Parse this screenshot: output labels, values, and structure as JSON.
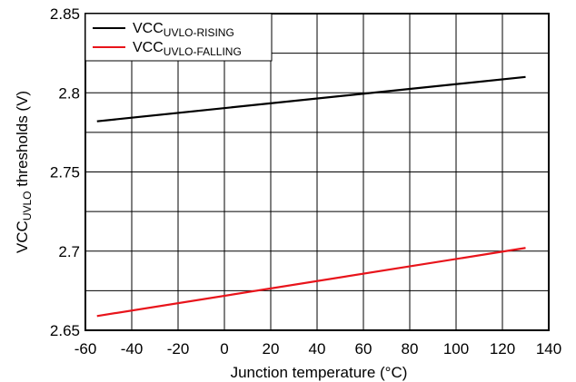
{
  "chart_data": {
    "type": "line",
    "title": "",
    "xlabel": "Junction temperature (°C)",
    "ylabel": {
      "main": "VCC",
      "sub": "UVLO",
      "rest": " thresholds (V)"
    },
    "xlim": [
      -60,
      140
    ],
    "ylim": [
      2.65,
      2.85
    ],
    "xticks": [
      -60,
      -40,
      -20,
      0,
      20,
      40,
      60,
      80,
      100,
      120,
      140
    ],
    "xtick_labels": [
      "-60",
      "-40",
      "-20",
      "0",
      "20",
      "40",
      "60",
      "80",
      "100",
      "120",
      "140"
    ],
    "yticks": [
      2.65,
      2.7,
      2.75,
      2.8,
      2.85
    ],
    "ytick_labels": [
      "2.65",
      "2.7",
      "2.75",
      "2.8",
      "2.85"
    ],
    "minor_y_gridlines": [
      2.675,
      2.725,
      2.775,
      2.825
    ],
    "grid": true,
    "legend_position": "top-left",
    "series": [
      {
        "name": {
          "main": "VCC",
          "sub": "UVLO-RISING"
        },
        "color": "#000000",
        "x": [
          -55,
          130
        ],
        "y": [
          2.782,
          2.81
        ]
      },
      {
        "name": {
          "main": "VCC",
          "sub": "UVLO-FALLING"
        },
        "color": "#e8141b",
        "x": [
          -55,
          130
        ],
        "y": [
          2.659,
          2.702
        ]
      }
    ]
  }
}
